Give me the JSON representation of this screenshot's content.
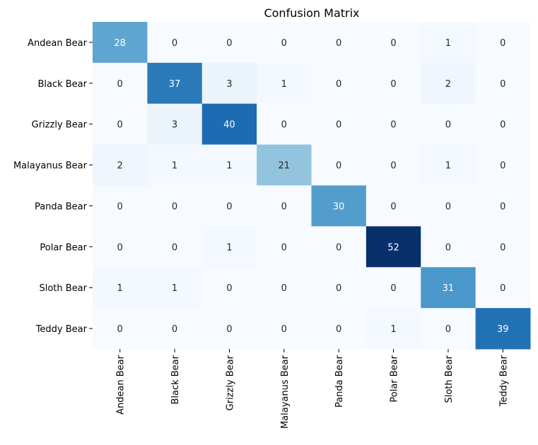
{
  "chart_data": {
    "type": "heatmap",
    "title": "Confusion Matrix",
    "xlabel": "",
    "ylabel": "",
    "row_labels": [
      "Andean Bear",
      "Black Bear",
      "Grizzly Bear",
      "Malayanus Bear",
      "Panda Bear",
      "Polar Bear",
      "Sloth Bear",
      "Teddy Bear"
    ],
    "col_labels": [
      "Andean Bear",
      "Black Bear",
      "Grizzly Bear",
      "Malayanus Bear",
      "Panda Bear",
      "Polar Bear",
      "Sloth Bear",
      "Teddy Bear"
    ],
    "values": [
      [
        28,
        0,
        0,
        0,
        0,
        0,
        1,
        0
      ],
      [
        0,
        37,
        3,
        1,
        0,
        0,
        2,
        0
      ],
      [
        0,
        3,
        40,
        0,
        0,
        0,
        0,
        0
      ],
      [
        2,
        1,
        1,
        21,
        0,
        0,
        1,
        0
      ],
      [
        0,
        0,
        0,
        0,
        30,
        0,
        0,
        0
      ],
      [
        0,
        0,
        1,
        0,
        0,
        52,
        0,
        0
      ],
      [
        1,
        1,
        0,
        0,
        0,
        0,
        31,
        0
      ],
      [
        0,
        0,
        0,
        0,
        0,
        1,
        0,
        39
      ]
    ],
    "value_range": [
      0,
      52
    ],
    "colormap": "Blues",
    "colorbar": false,
    "grid": false
  }
}
